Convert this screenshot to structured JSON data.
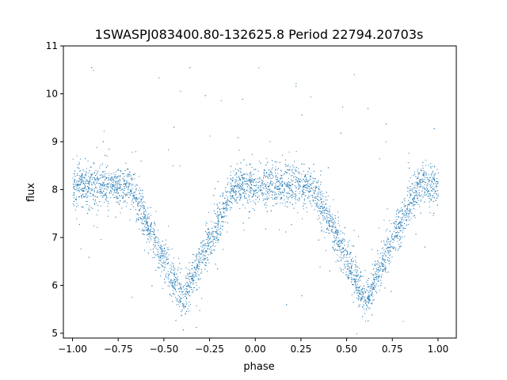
{
  "chart_data": {
    "type": "scatter",
    "title": "1SWASPJ083400.80-132625.8 Period 22794.20703s",
    "xlabel": "phase",
    "ylabel": "flux",
    "xlim": [
      -1.05,
      1.1
    ],
    "ylim": [
      4.9,
      11.0
    ],
    "xticks": [
      -1.0,
      -0.75,
      -0.5,
      -0.25,
      0.0,
      0.25,
      0.5,
      0.75,
      1.0
    ],
    "xtick_labels": [
      "−1.00",
      "−0.75",
      "−0.50",
      "−0.25",
      "0.00",
      "0.25",
      "0.50",
      "0.75",
      "1.00"
    ],
    "yticks": [
      5,
      6,
      7,
      8,
      9,
      10,
      11
    ],
    "ytick_labels": [
      "5",
      "6",
      "7",
      "8",
      "9",
      "10",
      "11"
    ],
    "grid": false,
    "legend": "none",
    "marker_color": "#1f77b4",
    "series": [
      {
        "description_points": "phase-folded light curve, x values from -1.0 to 1.0",
        "baseline_flux": 8.1,
        "baseline_scatter": 0.2,
        "eclipses": [
          {
            "phase_center": -0.4,
            "min_flux": 5.7,
            "half_width": 0.29
          },
          {
            "phase_center": 0.6,
            "min_flux": 5.7,
            "half_width": 0.29
          }
        ],
        "outliers_range": [
          5.2,
          10.7
        ]
      }
    ]
  }
}
